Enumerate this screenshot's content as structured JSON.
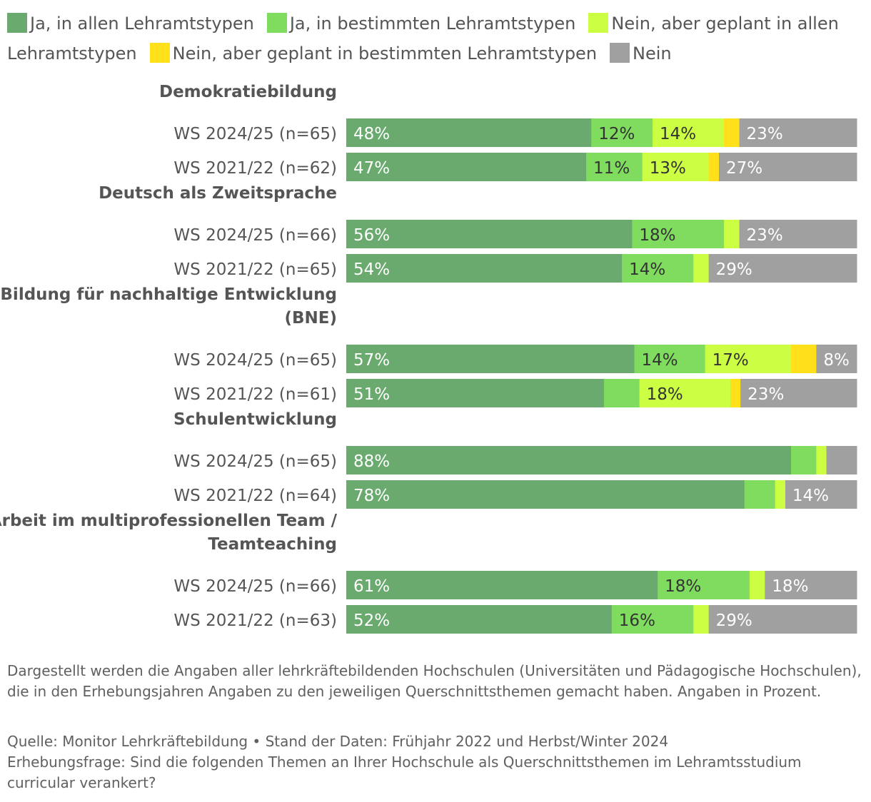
{
  "chart_data": {
    "type": "bar",
    "orientation": "horizontal",
    "stacked": true,
    "legend": {
      "placement": "top",
      "entries": [
        {
          "name": "Ja, in allen Lehramtstypen",
          "color": "#6aaa6e"
        },
        {
          "name": "Ja, in bestimmten Lehramtstypen",
          "color": "#7fdc5e"
        },
        {
          "name": "Nein, aber geplant in allen Lehramtstypen",
          "color": "#ccff44"
        },
        {
          "name": "Nein, aber geplant in bestimmten Lehramtstypen",
          "color": "#ffe01a"
        },
        {
          "name": "Nein",
          "color": "#a0a0a0"
        }
      ]
    },
    "groups": [
      {
        "title": "Demokratiebildung",
        "rows": [
          {
            "label": "WS 2024/25 (n=65)",
            "values": [
              48,
              12,
              14,
              3,
              23
            ],
            "labels": [
              "48%",
              "12%",
              "14%",
              "",
              "23%"
            ]
          },
          {
            "label": "WS 2021/22 (n=62)",
            "values": [
              47,
              11,
              13,
              2,
              27
            ],
            "labels": [
              "47%",
              "11%",
              "13%",
              "",
              "27%"
            ]
          }
        ]
      },
      {
        "title": "Deutsch als Zweitsprache",
        "rows": [
          {
            "label": "WS 2024/25 (n=66)",
            "values": [
              56,
              18,
              3,
              0,
              23
            ],
            "labels": [
              "56%",
              "18%",
              "",
              "",
              "23%"
            ]
          },
          {
            "label": "WS 2021/22 (n=65)",
            "values": [
              54,
              14,
              3,
              0,
              29
            ],
            "labels": [
              "54%",
              "14%",
              "",
              "",
              "29%"
            ]
          }
        ]
      },
      {
        "title": "Bildung für nachhaltige Entwicklung (BNE)",
        "rows": [
          {
            "label": "WS 2024/25 (n=65)",
            "values": [
              57,
              14,
              17,
              5,
              8
            ],
            "labels": [
              "57%",
              "14%",
              "17%",
              "",
              "8%"
            ]
          },
          {
            "label": "WS 2021/22 (n=61)",
            "values": [
              51,
              7,
              18,
              2,
              23
            ],
            "labels": [
              "51%",
              "",
              "18%",
              "",
              "23%"
            ]
          }
        ]
      },
      {
        "title": "Schulentwicklung",
        "rows": [
          {
            "label": "WS 2024/25 (n=65)",
            "values": [
              88,
              5,
              2,
              0,
              6
            ],
            "labels": [
              "88%",
              "",
              "",
              "",
              ""
            ]
          },
          {
            "label": "WS 2021/22 (n=64)",
            "values": [
              78,
              6,
              2,
              0,
              14
            ],
            "labels": [
              "78%",
              "",
              "",
              "",
              "14%"
            ]
          }
        ]
      },
      {
        "title": "Arbeit im multiprofessionellen Team / Teamteaching",
        "rows": [
          {
            "label": "WS 2024/25 (n=66)",
            "values": [
              61,
              18,
              3,
              0,
              18
            ],
            "labels": [
              "61%",
              "18%",
              "",
              "",
              "18%"
            ]
          },
          {
            "label": "WS 2021/22 (n=63)",
            "values": [
              52,
              16,
              3,
              0,
              29
            ],
            "labels": [
              "52%",
              "16%",
              "",
              "",
              "29%"
            ]
          }
        ]
      }
    ],
    "xlim": [
      0,
      100
    ]
  },
  "footer": {
    "note": "Dargestellt werden die Angaben aller lehrkräftebildenden Hochschulen (Universitäten und Pädagogische Hochschulen), die in den Erhebungsjahren Angaben zu den jeweiligen Querschnittsthemen gemacht haben. Angaben in Prozent.",
    "source": "Quelle: Monitor Lehrkräftebildung • Stand der Daten: Frühjahr 2022 und Herbst/Winter 2024",
    "question": "Erhebungsfrage: Sind die folgenden Themen an Ihrer Hochschule als Querschnittsthemen im Lehramtsstudium curricular verankert?"
  }
}
